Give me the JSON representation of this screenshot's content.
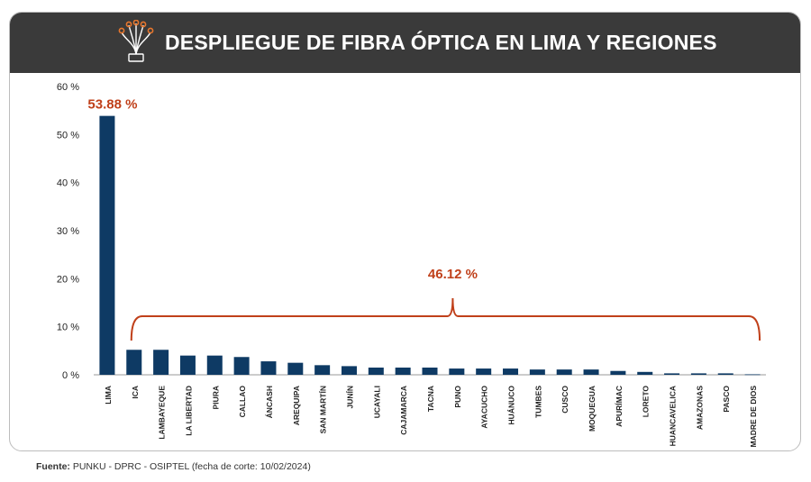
{
  "header": {
    "title": "DESPLIEGUE DE FIBRA ÓPTICA EN LIMA Y REGIONES",
    "logo_icon": "fiber-optic-icon"
  },
  "colors": {
    "header_bg": "#3a3a3a",
    "bar": "#0e3a64",
    "accent": "#c0401a"
  },
  "annotations": {
    "lima_label": "53.88 %",
    "regions_label": "46.12 %"
  },
  "source": {
    "prefix": "Fuente:",
    "text": "PUNKU - DPRC - OSIPTEL (fecha de corte: 10/02/2024)"
  },
  "chart_data": {
    "type": "bar",
    "title": "DESPLIEGUE DE FIBRA ÓPTICA EN LIMA Y REGIONES",
    "xlabel": "",
    "ylabel": "",
    "ylim": [
      0,
      60
    ],
    "yticks": [
      0,
      10,
      20,
      30,
      40,
      50,
      60
    ],
    "ytick_labels": [
      "0 %",
      "10 %",
      "20 %",
      "30 %",
      "40 %",
      "50 %",
      "60 %"
    ],
    "grid": false,
    "categories": [
      "LIMA",
      "ICA",
      "LAMBAYEQUE",
      "LA LIBERTAD",
      "PIURA",
      "CALLAO",
      "ÁNCASH",
      "AREQUIPA",
      "SAN MARTÍN",
      "JUNÍN",
      "UCAYALI",
      "CAJAMARCA",
      "TACNA",
      "PUNO",
      "AYACUCHO",
      "HUÁNUCO",
      "TUMBES",
      "CUSCO",
      "MOQUEGUA",
      "APURÍMAC",
      "LORETO",
      "HUANCAVELICA",
      "AMAZONAS",
      "PASCO",
      "MADRE DE DIOS"
    ],
    "values": [
      53.88,
      5.2,
      5.2,
      4.0,
      4.0,
      3.7,
      2.8,
      2.5,
      2.0,
      1.8,
      1.5,
      1.5,
      1.5,
      1.3,
      1.3,
      1.3,
      1.1,
      1.1,
      1.1,
      0.8,
      0.6,
      0.3,
      0.3,
      0.3,
      0.1
    ],
    "annotations": [
      {
        "text": "53.88 %",
        "target": "LIMA"
      },
      {
        "text": "46.12 %",
        "target": "ICA – MADRE DE DIOS"
      }
    ]
  }
}
